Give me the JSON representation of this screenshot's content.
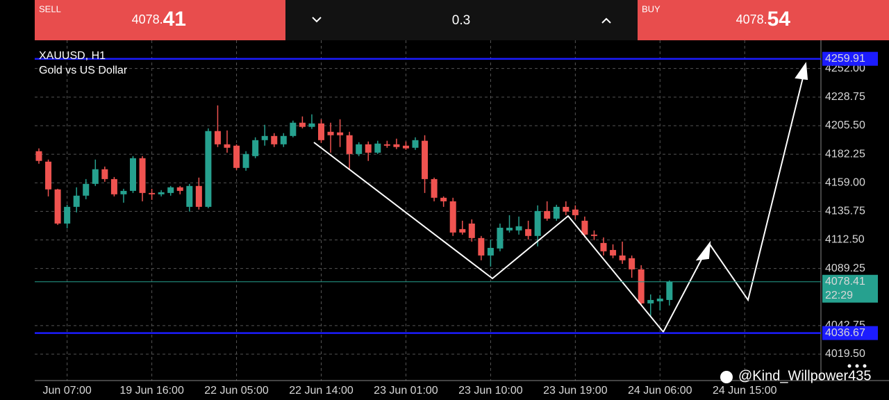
{
  "trade_bar": {
    "sell_label": "SELL",
    "sell_price_small": "4078.",
    "sell_price_large": "41",
    "lot": "0.3",
    "buy_label": "BUY",
    "buy_price_small": "4078.",
    "buy_price_large": "54"
  },
  "chart_data": {
    "type": "candlestick",
    "title": "XAUUSD, H1",
    "subtitle": "Gold vs US Dollar",
    "categories": [
      null,
      null,
      null,
      "Jun 07:00",
      null,
      null,
      null,
      null,
      null,
      null,
      null,
      null,
      "19 Jun 16:00",
      null,
      null,
      null,
      null,
      null,
      null,
      null,
      null,
      "22 Jun 05:00",
      null,
      null,
      null,
      null,
      null,
      null,
      null,
      null,
      "22 Jun 14:00",
      null,
      null,
      null,
      null,
      null,
      null,
      null,
      null,
      "23 Jun 01:00",
      null,
      null,
      null,
      null,
      null,
      null,
      null,
      null,
      "23 Jun 10:00",
      null,
      null,
      null,
      null,
      null,
      null,
      null,
      null,
      "23 Jun 19:00",
      null,
      null,
      null,
      null,
      null,
      null,
      null,
      null,
      "24 Jun 06:00",
      null,
      null,
      null,
      null,
      null,
      null,
      null,
      null,
      "24 Jun 15:00",
      null
    ],
    "open": [
      4184.7,
      4176.2,
      4153.6,
      4125.8,
      4139.4,
      4148.5,
      4158.1,
      4170.0,
      4162.0,
      4149.6,
      4152.4,
      4179.0,
      4150.7,
      4149.6,
      4150.7,
      4155.3,
      4139.4,
      4156.4,
      4139.4,
      4201.1,
      4190.3,
      4189.2,
      4171.1,
      4180.7,
      4193.7,
      4197.1,
      4190.3,
      4197.1,
      4207.9,
      4204.5,
      4207.3,
      4200.5,
      4200.0,
      4197.7,
      4182.4,
      4190.3,
      4183.5,
      4190.3,
      4190.3,
      4189.2,
      4187.5,
      4193.2,
      4162.0,
      4146.8,
      4143.9,
      4121.3,
      4125.8,
      4114.0,
      4099.8,
      4105.5,
      4120.2,
      4120.2,
      4121.3,
      4115.7,
      4136.0,
      4129.8,
      4139.4,
      4137.2,
      4128.1,
      4116.8,
      4110.0,
      4104.3,
      4099.8,
      4097.6,
      4088.5,
      4060.8,
      4062.5,
      4063.6,
      null,
      null,
      null,
      null,
      null,
      null,
      null,
      null,
      null
    ],
    "high": [
      4187.0,
      4177.9,
      4154.1,
      4141.1,
      4155.3,
      4162.0,
      4177.9,
      4172.2,
      4163.7,
      4154.1,
      4180.7,
      4180.7,
      4154.1,
      4153.0,
      4156.4,
      4156.4,
      4158.1,
      4163.2,
      4203.3,
      4222.0,
      4201.6,
      4190.3,
      4184.7,
      4196.0,
      4206.2,
      4199.4,
      4199.4,
      4209.6,
      4213.0,
      4214.7,
      4210.7,
      4207.9,
      4210.7,
      4200.5,
      4192.0,
      4192.6,
      4193.2,
      4193.2,
      4194.9,
      4192.6,
      4196.0,
      4197.7,
      4163.2,
      4147.9,
      4146.8,
      4128.1,
      4129.2,
      4115.7,
      4112.8,
      4125.8,
      4132.6,
      4131.5,
      4128.1,
      4140.6,
      4143.9,
      4141.1,
      4143.9,
      4140.6,
      4131.5,
      4120.2,
      4114.5,
      4108.9,
      4111.1,
      4099.8,
      4091.9,
      4068.1,
      4067.6,
      4079.5,
      null,
      null,
      null,
      null,
      null,
      null,
      null,
      null,
      null
    ],
    "low": [
      4174.5,
      4147.9,
      4124.7,
      4121.9,
      4134.9,
      4145.6,
      4156.4,
      4159.8,
      4147.9,
      4142.8,
      4150.7,
      4143.9,
      4145.1,
      4147.9,
      4148.5,
      4149.6,
      4135.5,
      4137.2,
      4138.3,
      4188.1,
      4183.5,
      4169.4,
      4168.8,
      4179.0,
      4189.2,
      4188.1,
      4188.1,
      4196.0,
      4203.3,
      4202.8,
      4191.5,
      4183.5,
      4188.1,
      4169.4,
      4180.7,
      4176.8,
      4182.4,
      4187.5,
      4186.4,
      4185.8,
      4185.8,
      4150.7,
      4143.9,
      4139.4,
      4115.7,
      4116.8,
      4111.1,
      4095.9,
      4090.8,
      4103.2,
      4118.5,
      4116.8,
      4112.8,
      4107.2,
      4128.1,
      4128.1,
      4132.6,
      4129.2,
      4114.5,
      4112.3,
      4099.8,
      4097.6,
      4093.0,
      4081.7,
      4059.1,
      4050.6,
      4055.1,
      4059.1,
      null,
      null,
      null,
      null,
      null,
      null,
      null,
      null,
      null
    ],
    "close": [
      4176.8,
      4153.6,
      4125.8,
      4139.4,
      4148.5,
      4158.1,
      4170.0,
      4162.0,
      4149.6,
      4152.4,
      4179.0,
      4150.7,
      4149.6,
      4151.3,
      4155.3,
      4152.4,
      4156.4,
      4139.4,
      4201.1,
      4190.3,
      4187.5,
      4171.1,
      4182.4,
      4193.7,
      4197.1,
      4190.3,
      4197.1,
      4207.9,
      4204.5,
      4207.3,
      4193.7,
      4197.7,
      4197.7,
      4182.4,
      4190.3,
      4183.5,
      4190.9,
      4189.2,
      4188.1,
      4187.0,
      4193.7,
      4162.0,
      4146.8,
      4143.9,
      4118.5,
      4118.5,
      4114.0,
      4099.8,
      4106.0,
      4122.4,
      4122.4,
      4123.6,
      4115.7,
      4136.0,
      4129.8,
      4139.4,
      4135.5,
      4132.6,
      4116.8,
      4115.7,
      4103.2,
      4099.8,
      4095.9,
      4088.5,
      4060.8,
      4063.6,
      4064.7,
      4078.41,
      null,
      null,
      null,
      null,
      null,
      null,
      null,
      null,
      null
    ],
    "up_color": "#26a18f",
    "down_color": "#ef5350",
    "ylim": [
      3998,
      4275
    ],
    "yticks": [
      {
        "value": 4019.5,
        "label": "4019.50"
      },
      {
        "value": 4042.75,
        "label": "4042.75"
      },
      {
        "value": 4089.25,
        "label": "4089.25"
      },
      {
        "value": 4112.5,
        "label": "4112.50"
      },
      {
        "value": 4135.75,
        "label": "4135.75"
      },
      {
        "value": 4159,
        "label": "4159.00"
      },
      {
        "value": 4182.25,
        "label": "4182.25"
      },
      {
        "value": 4205.5,
        "label": "4205.50"
      },
      {
        "value": 4228.75,
        "label": "4228.75"
      },
      {
        "value": 4252,
        "label": "4252.00"
      }
    ],
    "grid": true,
    "hlines": [
      {
        "value": 4259.91,
        "color": "#1c1cff"
      },
      {
        "value": 4036.67,
        "color": "#1c1cff"
      }
    ],
    "last_price": 4078.41,
    "last_price_color": "#26a18f",
    "countdown": "22:29"
  },
  "watermark": "@Kind_Willpower435"
}
